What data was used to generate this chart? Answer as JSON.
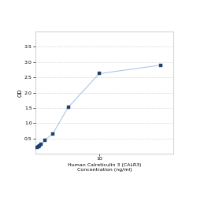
{
  "x": [
    0,
    0.156,
    0.313,
    0.625,
    1.25,
    2.5,
    5,
    10,
    20
  ],
  "y": [
    0.2,
    0.22,
    0.25,
    0.3,
    0.45,
    0.65,
    1.52,
    2.62,
    2.9
  ],
  "line_color": "#a8c8e8",
  "marker_color": "#1f3f6e",
  "marker_size": 3,
  "xlabel_line1": "Human Calreticulin 3 (CALR3)",
  "xlabel_line2": "Concentration (ng/ml)",
  "ylabel": "OD",
  "xlim": [
    -0.3,
    22
  ],
  "ylim": [
    0,
    4.0
  ],
  "yticks": [
    0.5,
    1.0,
    1.5,
    2.0,
    2.5,
    3.0,
    3.5
  ],
  "xticks": [
    10
  ],
  "xlabel_fontsize": 4.5,
  "ylabel_fontsize": 5,
  "tick_fontsize": 4.5,
  "grid_color": "#d0d0d0",
  "background_color": "#ffffff"
}
